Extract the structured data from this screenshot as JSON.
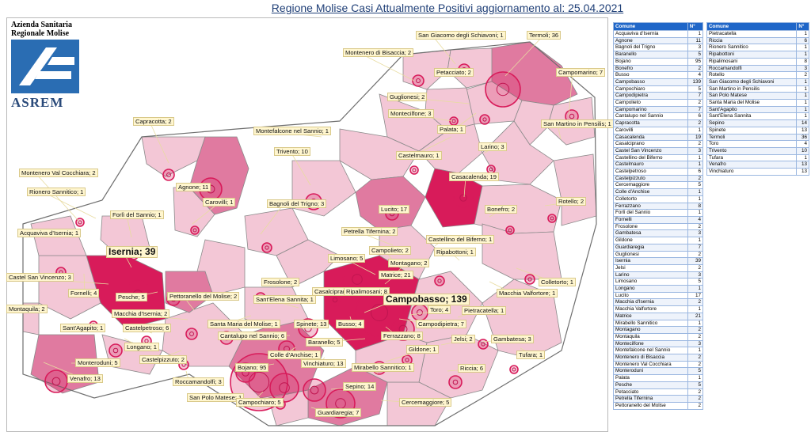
{
  "title": "Regione Molise Casi Attualmente Positivi aggiornamento al: 25.04.2021",
  "logo": {
    "line1": "Azienda Sanitaria",
    "line2": "Regionale Molise",
    "brand": "ASREM"
  },
  "colors": {
    "high": "#d81b5a",
    "mid": "#e07aa0",
    "low": "#f3c7d6",
    "none": "#ffffff",
    "border": "#8a8a8a",
    "header": "#1f66c8"
  },
  "table_headers": {
    "comune": "Comune",
    "n": "N°"
  },
  "table_left": [
    [
      "Acquaviva d'Isernia",
      "1"
    ],
    [
      "Agnone",
      "11"
    ],
    [
      "Bagnoli del Trigno",
      "3"
    ],
    [
      "Baranello",
      "5"
    ],
    [
      "Bojano",
      "95"
    ],
    [
      "Bonefro",
      "2"
    ],
    [
      "Busso",
      "4"
    ],
    [
      "Campobasso",
      "139"
    ],
    [
      "Campochiaro",
      "5"
    ],
    [
      "Campodipietra",
      "7"
    ],
    [
      "Campolieto",
      "2"
    ],
    [
      "Campomarino",
      "7"
    ],
    [
      "Cantalupo nel Sannio",
      "6"
    ],
    [
      "Capracotta",
      "2"
    ],
    [
      "Carovilli",
      "1"
    ],
    [
      "Casacalenda",
      "19"
    ],
    [
      "Casalciprano",
      "2"
    ],
    [
      "Castel San Vincenzo",
      "3"
    ],
    [
      "Castellino del Biferno",
      "1"
    ],
    [
      "Castelmauro",
      "1"
    ],
    [
      "Castelpetroso",
      "6"
    ],
    [
      "Castelpizzuto",
      "2"
    ],
    [
      "Cercemaggiore",
      "5"
    ],
    [
      "Colle d'Anchise",
      "1"
    ],
    [
      "Colletorto",
      "1"
    ],
    [
      "Ferrazzano",
      "8"
    ],
    [
      "Forlì del Sannio",
      "1"
    ],
    [
      "Fornelli",
      "4"
    ],
    [
      "Frosolone",
      "2"
    ],
    [
      "Gambatesa",
      "3"
    ],
    [
      "Gildone",
      "1"
    ],
    [
      "Guardiaregia",
      "7"
    ],
    [
      "Guglionesi",
      "2"
    ],
    [
      "Isernia",
      "39"
    ],
    [
      "Jelsi",
      "2"
    ],
    [
      "Larino",
      "3"
    ],
    [
      "Limosano",
      "5"
    ],
    [
      "Longano",
      "1"
    ],
    [
      "Lucito",
      "17"
    ],
    [
      "Macchia d'Isernia",
      "2"
    ],
    [
      "Macchia Valfortore",
      "1"
    ],
    [
      "Matrice",
      "21"
    ],
    [
      "Mirabello Sannitico",
      "1"
    ],
    [
      "Montagano",
      "2"
    ],
    [
      "Montaquila",
      "2"
    ],
    [
      "Montecilfone",
      "3"
    ],
    [
      "Montefalcone nel Sannio",
      "1"
    ],
    [
      "Montenero di Bisaccia",
      "2"
    ],
    [
      "Montenero Val Cocchiara",
      "2"
    ],
    [
      "Monteroduni",
      "5"
    ],
    [
      "Palata",
      "1"
    ],
    [
      "Pesche",
      "5"
    ],
    [
      "Petacciato",
      "2"
    ],
    [
      "Petrella Tifernina",
      "2"
    ],
    [
      "Pettoranello del Molise",
      "2"
    ]
  ],
  "table_right": [
    [
      "Pietracatella",
      "1"
    ],
    [
      "Riccia",
      "6"
    ],
    [
      "Rionero Sannitico",
      "1"
    ],
    [
      "Ripabottoni",
      "1"
    ],
    [
      "Ripalimosani",
      "8"
    ],
    [
      "Roccamandolfi",
      "3"
    ],
    [
      "Rotello",
      "2"
    ],
    [
      "San Giacomo degli Schiavoni",
      "1"
    ],
    [
      "San Martino in Pensilis",
      "1"
    ],
    [
      "San Polo Matese",
      "1"
    ],
    [
      "Santa Maria del Molise",
      "1"
    ],
    [
      "Sant'Agapito",
      "1"
    ],
    [
      "Sant'Elena Sannita",
      "1"
    ],
    [
      "Sepino",
      "14"
    ],
    [
      "Spinete",
      "13"
    ],
    [
      "Termoli",
      "36"
    ],
    [
      "Toro",
      "4"
    ],
    [
      "Trivento",
      "10"
    ],
    [
      "Tufara",
      "1"
    ],
    [
      "Venafro",
      "13"
    ],
    [
      "Vinchiaturo",
      "13"
    ]
  ],
  "map_labels": [
    {
      "t": "San Giacomo degli Schiavoni; 1"
    },
    {
      "t": "Termoli; 36"
    },
    {
      "t": "Montenero di Bisaccia; 2"
    },
    {
      "t": "Petacciato; 2"
    },
    {
      "t": "Campomarino; 7"
    },
    {
      "t": "Guglionesi; 2"
    },
    {
      "t": "Montecilfone; 3"
    },
    {
      "t": "Palata; 1"
    },
    {
      "t": "San Martino in Pensilis; 1"
    },
    {
      "t": "Capracotta; 2"
    },
    {
      "t": "Montefalcone nel Sannio; 1"
    },
    {
      "t": "Castelmauro; 1"
    },
    {
      "t": "Larino; 3"
    },
    {
      "t": "Trivento; 10"
    },
    {
      "t": "Montenero Val Cocchiara; 2"
    },
    {
      "t": "Agnone; 11"
    },
    {
      "t": "Casacalenda; 19"
    },
    {
      "t": "Rionero Sannitico; 1"
    },
    {
      "t": "Carovilli; 1"
    },
    {
      "t": "Bagnoli del Trigno; 3"
    },
    {
      "t": "Forlì del Sannio; 1"
    },
    {
      "t": "Lucito; 17"
    },
    {
      "t": "Bonefro; 2"
    },
    {
      "t": "Rotello; 2"
    },
    {
      "t": "Acquaviva d'Isernia; 1"
    },
    {
      "t": "Petrella Tifernina; 2"
    },
    {
      "t": "Castellino del Biferno; 1"
    },
    {
      "t": "Isernia; 39",
      "big": true
    },
    {
      "t": "Campolieto; 2"
    },
    {
      "t": "Ripabottoni; 1"
    },
    {
      "t": "Limosano; 5"
    },
    {
      "t": "Montagano; 2"
    },
    {
      "t": "Colletorto; 1"
    },
    {
      "t": "Castel San Vincenzo; 3"
    },
    {
      "t": "Matrice; 21"
    },
    {
      "t": "Fornelli; 4"
    },
    {
      "t": "Frosolone; 2"
    },
    {
      "t": "Casalciprano; 2"
    },
    {
      "t": "Ripalimosani; 8"
    },
    {
      "t": "Macchia Valfortore; 1"
    },
    {
      "t": "Pesche; 5"
    },
    {
      "t": "Pettoranello del Molise; 2"
    },
    {
      "t": "Sant'Elena Sannita; 1"
    },
    {
      "t": "Campobasso; 139",
      "big": true
    },
    {
      "t": "Montaquila; 2"
    },
    {
      "t": "Macchia d'Isernia; 2"
    },
    {
      "t": "Toro; 4"
    },
    {
      "t": "Pietracatella; 1"
    },
    {
      "t": "Sant'Agapito; 1"
    },
    {
      "t": "Castelpetroso; 6"
    },
    {
      "t": "Santa Maria del Molise; 1"
    },
    {
      "t": "Spinete; 13"
    },
    {
      "t": "Busso; 4"
    },
    {
      "t": "Campodipietra; 7"
    },
    {
      "t": "Cantalupo nel Sannio; 6"
    },
    {
      "t": "Baranello; 5"
    },
    {
      "t": "Ferrazzano; 8"
    },
    {
      "t": "Gambatesa; 3"
    },
    {
      "t": "Longano; 1"
    },
    {
      "t": "Colle d'Anchise; 1"
    },
    {
      "t": "Jelsi; 2"
    },
    {
      "t": "Gildone; 1"
    },
    {
      "t": "Tufara; 1"
    },
    {
      "t": "Castelpizzuto; 2"
    },
    {
      "t": "Monteroduni; 5"
    },
    {
      "t": "Vinchiaturo; 13"
    },
    {
      "t": "Mirabello Sannitico; 1"
    },
    {
      "t": "Riccia; 6"
    },
    {
      "t": "Roccamandolfi; 3"
    },
    {
      "t": "Bojano; 95"
    },
    {
      "t": "Sepino; 14"
    },
    {
      "t": "Venafro; 13"
    },
    {
      "t": "San Polo Matese; 1"
    },
    {
      "t": "Cercemaggiore; 5"
    },
    {
      "t": "Campochiaro; 5"
    },
    {
      "t": "Guardiaregia; 7"
    }
  ]
}
